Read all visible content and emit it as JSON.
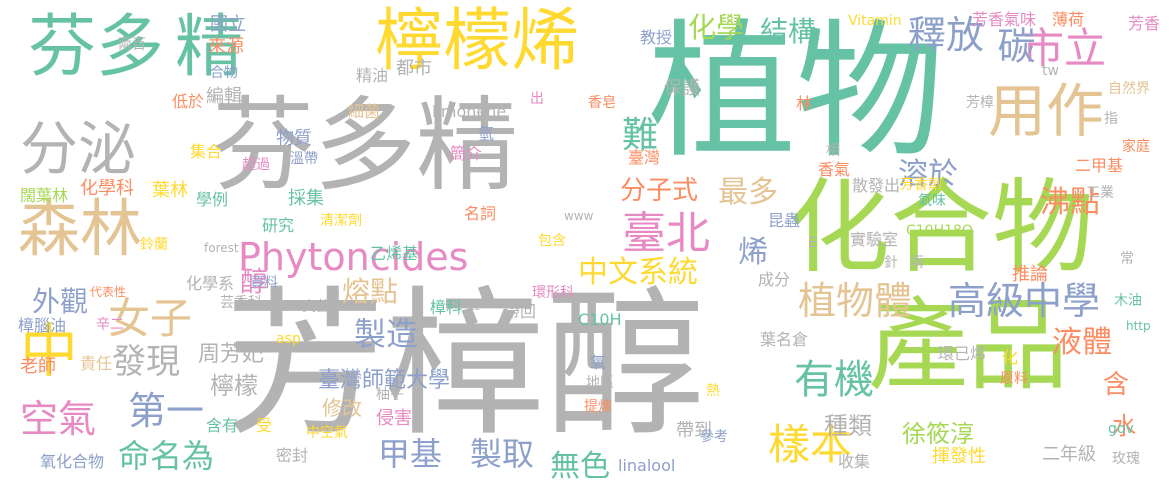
{
  "palette": {
    "green": "#66c2a5",
    "lime": "#a6d854",
    "yellow": "#ffd92f",
    "tan": "#e5c494",
    "gray": "#b3b3b3",
    "blue": "#8da0cb",
    "pink": "#e78ac3",
    "orange": "#fc8d62"
  },
  "words": [
    {
      "id": "w001",
      "text": "植物",
      "color": "green"
    },
    {
      "id": "w002",
      "text": "芳樟醇",
      "color": "gray"
    },
    {
      "id": "w003",
      "text": "芬多精",
      "color": "gray"
    },
    {
      "id": "w004",
      "text": "化合物",
      "color": "lime"
    },
    {
      "id": "w005",
      "text": "產品",
      "color": "lime"
    },
    {
      "id": "w006",
      "text": "檸檬烯",
      "color": "yellow"
    },
    {
      "id": "w007",
      "text": "芬多",
      "color": "green"
    },
    {
      "id": "w008",
      "text": "精",
      "color": "green"
    },
    {
      "id": "w009",
      "text": "分泌",
      "color": "gray"
    },
    {
      "id": "w010",
      "text": "森林",
      "color": "tan"
    },
    {
      "id": "w011",
      "text": "用作",
      "color": "tan"
    },
    {
      "id": "w012",
      "text": "市立",
      "color": "pink"
    },
    {
      "id": "w013",
      "text": "中",
      "color": "yellow"
    },
    {
      "id": "w014",
      "text": "女子",
      "color": "tan"
    },
    {
      "id": "w015",
      "text": "Phytoncides",
      "color": "pink"
    },
    {
      "id": "w016",
      "text": "臺北",
      "color": "pink"
    },
    {
      "id": "w017",
      "text": "高級中學",
      "color": "blue"
    },
    {
      "id": "w018",
      "text": "植物體",
      "color": "tan"
    },
    {
      "id": "w019",
      "text": "中文系統",
      "color": "yellow"
    },
    {
      "id": "w020",
      "text": "釋放",
      "color": "blue"
    },
    {
      "id": "w021",
      "text": "結構",
      "color": "green"
    },
    {
      "id": "w022",
      "text": "化學",
      "color": "lime"
    },
    {
      "id": "w023",
      "text": "碳",
      "color": "blue"
    },
    {
      "id": "w024",
      "text": "分子式",
      "color": "orange"
    },
    {
      "id": "w025",
      "text": "最多",
      "color": "tan"
    },
    {
      "id": "w026",
      "text": "難",
      "color": "green"
    },
    {
      "id": "w027",
      "text": "溶於",
      "color": "blue"
    },
    {
      "id": "w028",
      "text": "沸點",
      "color": "orange"
    },
    {
      "id": "w029",
      "text": "有機",
      "color": "green"
    },
    {
      "id": "w030",
      "text": "製造",
      "color": "blue"
    },
    {
      "id": "w031",
      "text": "熔點",
      "color": "tan"
    },
    {
      "id": "w032",
      "text": "樣本",
      "color": "yellow"
    },
    {
      "id": "w033",
      "text": "液體",
      "color": "orange"
    },
    {
      "id": "w034",
      "text": "含",
      "color": "orange"
    },
    {
      "id": "w035",
      "text": "種類",
      "color": "gray"
    },
    {
      "id": "w036",
      "text": "第一",
      "color": "blue"
    },
    {
      "id": "w037",
      "text": "發現",
      "color": "gray"
    },
    {
      "id": "w038",
      "text": "外觀",
      "color": "blue"
    },
    {
      "id": "w039",
      "text": "空氣",
      "color": "pink"
    },
    {
      "id": "w040",
      "text": "命名為",
      "color": "green"
    },
    {
      "id": "w041",
      "text": "甲基",
      "color": "blue"
    },
    {
      "id": "w042",
      "text": "製取",
      "color": "blue"
    },
    {
      "id": "w043",
      "text": "無色",
      "color": "green"
    },
    {
      "id": "w044",
      "text": "水",
      "color": "orange"
    },
    {
      "id": "w045",
      "text": "醇",
      "color": "pink"
    },
    {
      "id": "w046",
      "text": "烯",
      "color": "blue"
    },
    {
      "id": "w047",
      "text": "檸檬",
      "color": "gray"
    },
    {
      "id": "w048",
      "text": "周芳妃",
      "color": "gray"
    },
    {
      "id": "w049",
      "text": "臺灣師範大學",
      "color": "blue"
    },
    {
      "id": "w050",
      "text": "修改",
      "color": "tan"
    },
    {
      "id": "w051",
      "text": "化學科",
      "color": "orange"
    },
    {
      "id": "w052",
      "text": "保護",
      "color": "gray"
    },
    {
      "id": "w053",
      "text": "教授",
      "color": "blue"
    },
    {
      "id": "w054",
      "text": "都市",
      "color": "gray"
    },
    {
      "id": "w055",
      "text": "limonene",
      "color": "gray"
    },
    {
      "id": "w056",
      "text": "物質",
      "color": "blue"
    },
    {
      "id": "w057",
      "text": "溫帶",
      "color": "blue"
    },
    {
      "id": "w058",
      "text": "細菌",
      "color": "tan"
    },
    {
      "id": "w059",
      "text": "精油",
      "color": "gray"
    },
    {
      "id": "w060",
      "text": "國立",
      "color": "blue"
    },
    {
      "id": "w061",
      "text": "來源",
      "color": "orange"
    },
    {
      "id": "w062",
      "text": "合物",
      "color": "blue"
    },
    {
      "id": "w063",
      "text": "編輯",
      "color": "gray"
    },
    {
      "id": "w064",
      "text": "兩百",
      "color": "gray"
    },
    {
      "id": "w065",
      "text": "低於",
      "color": "orange"
    },
    {
      "id": "w066",
      "text": "集合",
      "color": "yellow"
    },
    {
      "id": "w067",
      "text": "超過",
      "color": "pink"
    },
    {
      "id": "w068",
      "text": "闊葉林",
      "color": "lime"
    },
    {
      "id": "w069",
      "text": "葉林",
      "color": "yellow"
    },
    {
      "id": "w070",
      "text": "採集",
      "color": "green"
    },
    {
      "id": "w071",
      "text": "學例",
      "color": "green"
    },
    {
      "id": "w072",
      "text": "清潔劑",
      "color": "yellow"
    },
    {
      "id": "w073",
      "text": "研究",
      "color": "green"
    },
    {
      "id": "w074",
      "text": "乙烯基",
      "color": "green"
    },
    {
      "id": "w075",
      "text": "名詞",
      "color": "orange"
    },
    {
      "id": "w076",
      "text": "簡介",
      "color": "pink"
    },
    {
      "id": "w077",
      "text": "氫",
      "color": "blue"
    },
    {
      "id": "w078",
      "text": "出",
      "color": "pink"
    },
    {
      "id": "w079",
      "text": "香皂",
      "color": "orange"
    },
    {
      "id": "w080",
      "text": "臺灣",
      "color": "orange"
    },
    {
      "id": "w081",
      "text": "包含",
      "color": "yellow"
    },
    {
      "id": "w082",
      "text": "帶回",
      "color": "gray"
    },
    {
      "id": "w083",
      "text": "www",
      "color": "gray"
    },
    {
      "id": "w084",
      "text": "ct",
      "color": "gray"
    },
    {
      "id": "w085",
      "text": "C10H",
      "color": "green"
    },
    {
      "id": "w086",
      "text": "環形科",
      "color": "pink"
    },
    {
      "id": "w087",
      "text": "成分",
      "color": "gray"
    },
    {
      "id": "w088",
      "text": "葉名倉",
      "color": "gray"
    },
    {
      "id": "w089",
      "text": "氧",
      "color": "blue"
    },
    {
      "id": "w090",
      "text": "地區",
      "color": "gray"
    },
    {
      "id": "w091",
      "text": "提煉",
      "color": "orange"
    },
    {
      "id": "w092",
      "text": "帶到",
      "color": "gray"
    },
    {
      "id": "w093",
      "text": "參考",
      "color": "blue"
    },
    {
      "id": "w094",
      "text": "熱",
      "color": "yellow"
    },
    {
      "id": "w095",
      "text": "柚子",
      "color": "gray"
    },
    {
      "id": "w096",
      "text": "侵害",
      "color": "pink"
    },
    {
      "id": "w097",
      "text": "中空氣",
      "color": "yellow"
    },
    {
      "id": "w098",
      "text": "含有",
      "color": "green"
    },
    {
      "id": "w099",
      "text": "受",
      "color": "yellow"
    },
    {
      "id": "w100",
      "text": "密封",
      "color": "gray"
    },
    {
      "id": "w101",
      "text": "linalool",
      "color": "blue"
    },
    {
      "id": "w102",
      "text": "收集",
      "color": "gray"
    },
    {
      "id": "w103",
      "text": "徐筱淳",
      "color": "lime"
    },
    {
      "id": "w104",
      "text": "揮發性",
      "color": "yellow"
    },
    {
      "id": "w105",
      "text": "二年級",
      "color": "gray"
    },
    {
      "id": "w106",
      "text": "玫瑰",
      "color": "gray"
    },
    {
      "id": "w107",
      "text": "Vitamin",
      "color": "yellow"
    },
    {
      "id": "w108",
      "text": "芳香氣味",
      "color": "pink"
    },
    {
      "id": "w109",
      "text": "薄荷",
      "color": "orange"
    },
    {
      "id": "w110",
      "text": "芳香",
      "color": "pink"
    },
    {
      "id": "w111",
      "text": "自然界",
      "color": "tan"
    },
    {
      "id": "w112",
      "text": "家庭",
      "color": "orange"
    },
    {
      "id": "w113",
      "text": "芳樟",
      "color": "gray"
    },
    {
      "id": "w114",
      "text": "tw",
      "color": "gray"
    },
    {
      "id": "w115",
      "text": "林",
      "color": "orange"
    },
    {
      "id": "w116",
      "text": "指",
      "color": "gray"
    },
    {
      "id": "w117",
      "text": "二甲基",
      "color": "orange"
    },
    {
      "id": "w118",
      "text": "工業",
      "color": "gray"
    },
    {
      "id": "w119",
      "text": "相",
      "color": "gray"
    },
    {
      "id": "w120",
      "text": "香氣",
      "color": "orange"
    },
    {
      "id": "w121",
      "text": "散發出",
      "color": "gray"
    },
    {
      "id": "w122",
      "text": "芳香劑",
      "color": "yellow"
    },
    {
      "id": "w123",
      "text": "氣味",
      "color": "green"
    },
    {
      "id": "w124",
      "text": "昆蟲",
      "color": "blue"
    },
    {
      "id": "w125",
      "text": "實驗室",
      "color": "gray"
    },
    {
      "id": "w126",
      "text": "C10H18O",
      "color": "lime"
    },
    {
      "id": "w127",
      "text": "E",
      "color": "gray"
    },
    {
      "id": "w128",
      "text": "針",
      "color": "gray"
    },
    {
      "id": "w129",
      "text": "兩",
      "color": "gray"
    },
    {
      "id": "w130",
      "text": "推論",
      "color": "orange"
    },
    {
      "id": "w131",
      "text": "常",
      "color": "gray"
    },
    {
      "id": "w132",
      "text": "木油",
      "color": "green"
    },
    {
      "id": "w133",
      "text": "http",
      "color": "green"
    },
    {
      "id": "w134",
      "text": "環己烯",
      "color": "gray"
    },
    {
      "id": "w135",
      "text": "化",
      "color": "yellow"
    },
    {
      "id": "w136",
      "text": "原料",
      "color": "orange"
    },
    {
      "id": "w137",
      "text": "gov",
      "color": "green"
    },
    {
      "id": "w138",
      "text": "鈴蘭",
      "color": "yellow"
    },
    {
      "id": "w139",
      "text": "forest",
      "color": "gray"
    },
    {
      "id": "w140",
      "text": "化學系",
      "color": "gray"
    },
    {
      "id": "w141",
      "text": "資料",
      "color": "blue"
    },
    {
      "id": "w142",
      "text": "代表性",
      "color": "orange"
    },
    {
      "id": "w143",
      "text": "芸香科",
      "color": "gray"
    },
    {
      "id": "w144",
      "text": "真菌",
      "color": "gray"
    },
    {
      "id": "w145",
      "text": "樟科",
      "color": "green"
    },
    {
      "id": "w146",
      "text": "樟腦油",
      "color": "blue"
    },
    {
      "id": "w147",
      "text": "辛二",
      "color": "pink"
    },
    {
      "id": "w148",
      "text": "asp",
      "color": "yellow"
    },
    {
      "id": "w149",
      "text": "老師",
      "color": "orange"
    },
    {
      "id": "w150",
      "text": "責任",
      "color": "tan"
    },
    {
      "id": "w151",
      "text": "氧化合物",
      "color": "blue"
    }
  ]
}
